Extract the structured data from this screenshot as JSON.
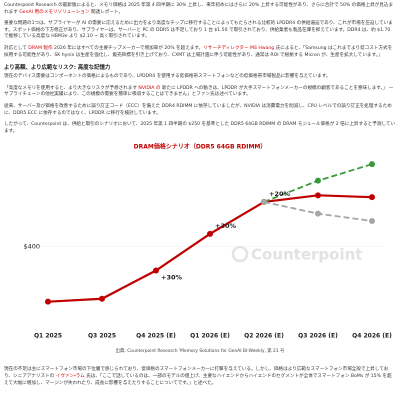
{
  "top_paragraphs": [
    {
      "runs": [
        {
          "text": "Counterpoint Research の最新版によると、メモリ価格は 2025 年第 4 四半期に 30% 上昇し、来年初めにはさらに 20% 上昇する可能性があり、さらに合計で 50% の価格上昇が見込まれます "
        },
        {
          "text": "GenAI 用のメモリソリューション",
          "style": "link"
        },
        {
          "text": " 関連レポート。"
        }
      ]
    },
    {
      "runs": [
        {
          "text": "重要な問題の1つは、サプライヤーが AI の需要に応えるために出力をより高度なチップに移行することによってもたらされる比較的 LPDDR4 の供給逼迫であり、これが市場を圧迫しています。スポット価格の下方修正があり、サプライヤーは、サーバーと PC の DDR5 は不足しており 1 台 $1.50 で取引されており、供給業者も製品在庫を抑えています。DDR4 は、約 $1.70 で推移している高度な HBM3e より $2.10 ~ 高く取引されています。"
        }
      ]
    },
    {
      "runs": [
        {
          "text": "対応として "
        },
        {
          "text": "DRAM 製作",
          "style": "link"
        },
        {
          "text": " 2026 年にはすべての主要チップメーカーで増加率が 20% を超えます。"
        },
        {
          "text": "リサーチディレクター MS Hwang",
          "style": "link"
        },
        {
          "text": " 氏によると、「Samsung はこれまでより低コスト方式を採用する可能性があり、SK hynix は生産を強化し、販売目標を引き上げており、CXMT は上場計画に伴う可能性があり、通常は ROI で根拠する Micron が、生産を拡大しています。」"
        }
      ]
    }
  ],
  "section_heading": "より高額、より広範なリスク: 高度な記憶力",
  "section_paragraphs": [
    {
      "runs": [
        {
          "text": "現在のデバイス需要はコンポーネントの価格によるものであり、LPDDR4 を使用する低価格帯スマートフォンなどの低価格帯市場製品に影響を与えています。"
        }
      ]
    },
    {
      "runs": [
        {
          "text": "「高度なメモリを使用すると、より大きなリスクが予想されます "
        },
        {
          "text": "NVIDIA の",
          "style": "link"
        },
        {
          "text": " 新たに LPDDR への動きは、LPDDR が大手スマートフォンメーカーの規模の顧客であることを意味します。」 ー サプライチェーンの他社実績により、この規模の需要を簡単に吸収することはできません」とファン氏は述べています。"
        }
      ]
    },
    {
      "runs": [
        {
          "text": "従来、サーバー及び価格を改善するために誤り訂正コード（ECC）を備えた DDR4 RDIMM に依存していましたが、NVIDIA は消費電力を削減し、CPU レベルでの誤り訂正を処理するために、DDR5 ECC に依存するのではなく、LPDDR に移行を検討しています。"
        }
      ]
    },
    {
      "runs": [
        {
          "text": "したがって、Counterpoint は、供給と取引のシナリオにおいて、2025 年第 1 四半期の $250 を基準とした DDR5 64GB RDIMM の DRAM モジュール価格が 2 倍に上昇すると予測しています。"
        }
      ]
    }
  ],
  "chart_data": {
    "type": "line",
    "title": "DRAM価格シナリオ（DDR5 64GB RDIMM）",
    "categories": [
      "Q1 2025",
      "Q3 2025",
      "Q4 2025 (E)",
      "Q1 2026 (E)",
      "Q2 2026 (E)",
      "Q3 2026 (E)",
      "Q4 2026 (E)"
    ],
    "series": [
      {
        "color": "#c00000",
        "dash": false,
        "values": [
          250,
          258,
          335,
          435,
          522,
          540,
          535
        ]
      },
      {
        "color": "#3a9a3a",
        "dash": true,
        "values": [
          null,
          null,
          null,
          null,
          522,
          580,
          625
        ]
      },
      {
        "color": "#a6a6a6",
        "dash": true,
        "values": [
          null,
          null,
          null,
          null,
          522,
          490,
          470
        ]
      }
    ],
    "annotations": [
      "+30%",
      "+30%",
      "+20%"
    ],
    "ylim": [
      200,
      650
    ],
    "yticks": [
      {
        "value": 400,
        "label": "$400"
      }
    ],
    "watermark": "Counterpoint"
  },
  "source": "出典: Counterpoint Research 'Memory Solutions for GenAI BI-Weekly, 第 21 号",
  "bottom_paragraphs": [
    {
      "runs": [
        {
          "text": "現在の不足は主にスマートフォン市場の下位層で感じられており、低価格のスマートフォンメーカーに打撃を与えている。しかし、価格はより広範なスマートフォン市場全般で上昇しており、シニアアナリストの "
        },
        {
          "text": "イヴァン・ラム",
          "style": "link"
        },
        {
          "text": " 氏は、「ここで話しているのは、一部のモデルの値上げ、主要なハイエンドからハイエンドのセグメントが全体でスマートフォン BoMs が 15% を超えて大幅に増加し、マージンが失われたり、成長に影響を与えたりすることについてです。」と述べた。"
        }
      ]
    }
  ]
}
